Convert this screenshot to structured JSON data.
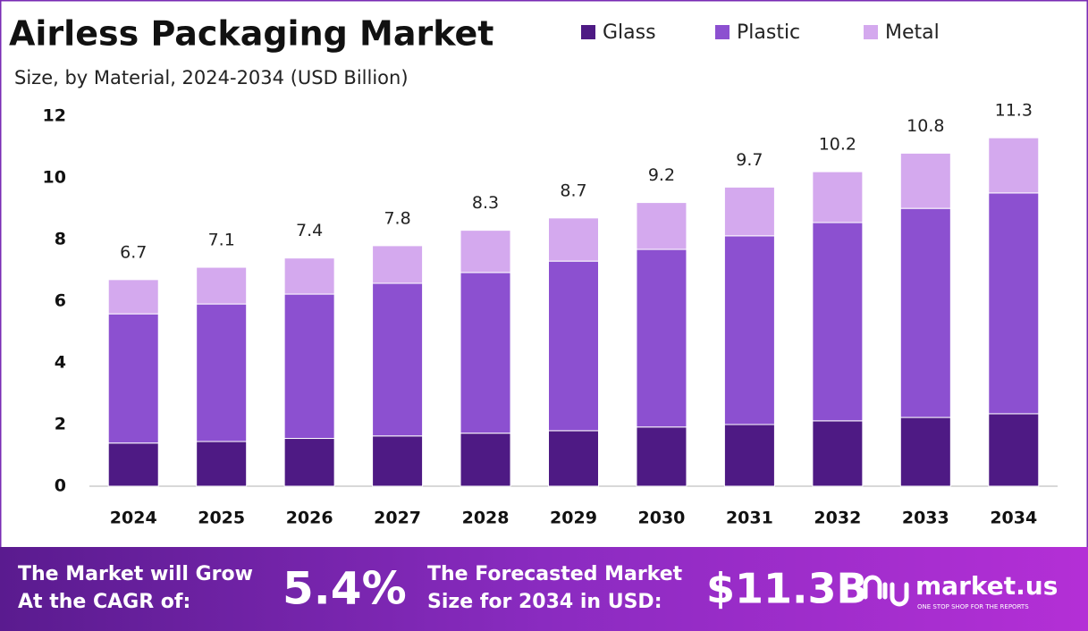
{
  "chart_data": {
    "type": "stacked_bar",
    "title": "Airless Packaging Market",
    "subtitle": "Size, by Material, 2024-2034 (USD Billion)",
    "categories": [
      "2024",
      "2025",
      "2026",
      "2027",
      "2028",
      "2029",
      "2030",
      "2031",
      "2032",
      "2033",
      "2034"
    ],
    "series": [
      {
        "name": "Glass",
        "color": "#4e1a84",
        "values": [
          1.4,
          1.45,
          1.55,
          1.63,
          1.72,
          1.8,
          1.92,
          2.0,
          2.12,
          2.23,
          2.35
        ]
      },
      {
        "name": "Plastic",
        "color": "#8c50d0",
        "values": [
          4.19,
          4.46,
          4.68,
          4.95,
          5.21,
          5.5,
          5.76,
          6.12,
          6.43,
          6.78,
          7.16
        ]
      },
      {
        "name": "Metal",
        "color": "#d4a9ee",
        "values": [
          1.11,
          1.19,
          1.17,
          1.22,
          1.37,
          1.4,
          1.52,
          1.58,
          1.65,
          1.79,
          1.79
        ]
      }
    ],
    "totals": [
      6.7,
      7.1,
      7.4,
      7.8,
      8.3,
      8.7,
      9.2,
      9.7,
      10.2,
      10.8,
      11.3
    ],
    "ylim": [
      0,
      12
    ],
    "yticks": [
      0,
      2,
      4,
      6,
      8,
      10,
      12
    ],
    "grid": false,
    "legend": "top"
  },
  "footer": {
    "cagr_text": [
      "The Market will Grow",
      "At the CAGR of:"
    ],
    "cagr_value": "5.4%",
    "forecast_text": [
      "The Forecasted Market",
      "Size for 2034 in USD:"
    ],
    "forecast_value": "$11.3B",
    "brand": "market.us",
    "tagline": "ONE STOP SHOP FOR THE REPORTS"
  }
}
